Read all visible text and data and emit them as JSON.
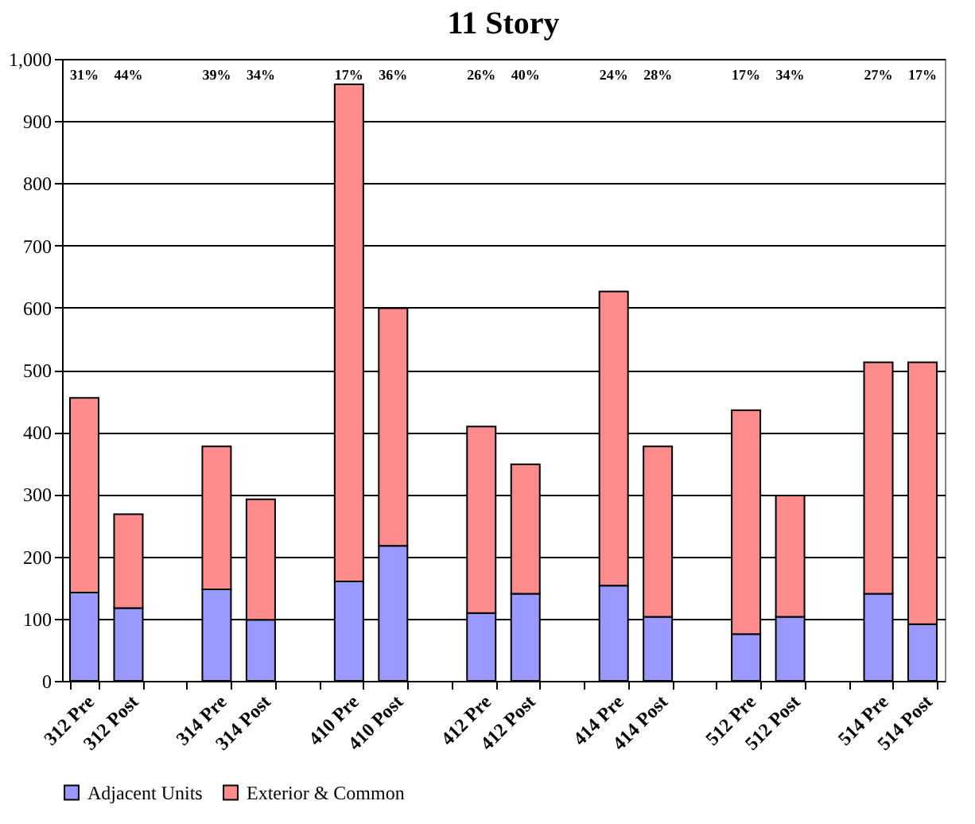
{
  "chart_data": {
    "type": "bar",
    "title": "11 Story",
    "categories": [
      "312 Pre",
      "312 Post",
      null,
      "314 Pre",
      "314 Post",
      null,
      "410 Pre",
      "410 Post",
      null,
      "412 Pre",
      "412 Post",
      null,
      "414 Pre",
      "414 Post",
      null,
      "512 Pre",
      "512 Post",
      null,
      "514 Pre",
      "514 Post"
    ],
    "series": [
      {
        "name": "Adjacent Units",
        "color": "#9999ff",
        "values": [
          142,
          117,
          null,
          147,
          98,
          null,
          160,
          217,
          null,
          109,
          140,
          null,
          153,
          103,
          null,
          75,
          103,
          null,
          140,
          91
        ]
      },
      {
        "name": "Exterior & Common",
        "color": "#ff8c8c",
        "values": [
          313,
          151,
          null,
          230,
          194,
          null,
          799,
          382,
          null,
          300,
          208,
          null,
          473,
          274,
          null,
          360,
          195,
          null,
          372,
          421
        ]
      }
    ],
    "stacked": true,
    "ylim": [
      0,
      1000
    ],
    "yticks": [
      0,
      100,
      200,
      300,
      400,
      500,
      600,
      700,
      800,
      900,
      {
        "value": 1000,
        "label": "1,000"
      }
    ],
    "grid": "y",
    "legend": "bottom",
    "annotations": [
      "31%",
      "44%",
      "39%",
      "34%",
      "17%",
      "36%",
      "26%",
      "40%",
      "24%",
      "28%",
      "17%",
      "34%",
      "27%",
      "17%"
    ]
  }
}
